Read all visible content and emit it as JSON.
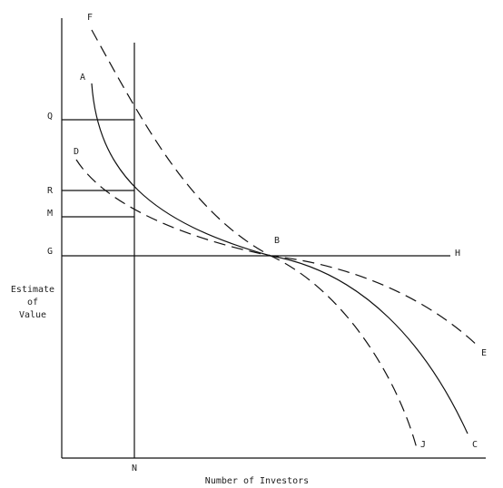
{
  "axes": {
    "y_label": [
      "Estimate",
      "of",
      "Value"
    ],
    "x_label": "Number of Investors"
  },
  "points": {
    "F": "F",
    "A": "A",
    "Q": "Q",
    "D": "D",
    "R": "R",
    "M": "M",
    "G": "G",
    "B": "B",
    "H": "H",
    "E": "E",
    "J": "J",
    "C": "C",
    "N": "N"
  }
}
